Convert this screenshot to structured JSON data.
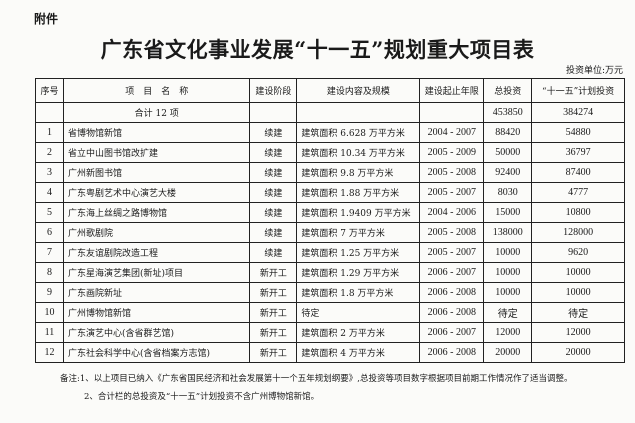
{
  "attachment_label": "附件",
  "title": "广东省文化事业发展“十一五”规划重大项目表",
  "unit": "投资单位:万元",
  "table": {
    "headers": [
      "序号",
      "项　目　名　称",
      "建设阶段",
      "建设内容及规模",
      "建设起止年限",
      "总投资",
      "“十一五”计划投资"
    ],
    "total_row": {
      "label": "合计 12 项",
      "total": "453850",
      "plan": "384274"
    },
    "rows": [
      [
        "1",
        "省博物馆新馆",
        "续建",
        "建筑面积 6.628 万平方米",
        "2004 - 2007",
        "88420",
        "54880"
      ],
      [
        "2",
        "省立中山图书馆改扩建",
        "续建",
        "建筑面积 10.34 万平方米",
        "2005 - 2009",
        "50000",
        "36797"
      ],
      [
        "3",
        "广州新图书馆",
        "续建",
        "建筑面积 9.8 万平方米",
        "2005 - 2008",
        "92400",
        "87400"
      ],
      [
        "4",
        "广东粤剧艺术中心演艺大楼",
        "续建",
        "建筑面积 1.88 万平方米",
        "2005 - 2007",
        "8030",
        "4777"
      ],
      [
        "5",
        "广东海上丝绸之路博物馆",
        "续建",
        "建筑面积 1.9409 万平方米",
        "2004 - 2006",
        "15000",
        "10800"
      ],
      [
        "6",
        "广州歌剧院",
        "续建",
        "建筑面积 7 万平方米",
        "2005 - 2008",
        "138000",
        "128000"
      ],
      [
        "7",
        "广东友谊剧院改造工程",
        "续建",
        "建筑面积 1.25 万平方米",
        "2005 - 2007",
        "10000",
        "9620"
      ],
      [
        "8",
        "广东星海演艺集团(新址)项目",
        "新开工",
        "建筑面积 1.29 万平方米",
        "2006 - 2007",
        "10000",
        "10000"
      ],
      [
        "9",
        "广东画院新址",
        "新开工",
        "建筑面积 1.8 万平方米",
        "2006 - 2008",
        "10000",
        "10000"
      ],
      [
        "10",
        "广州博物馆新馆",
        "新开工",
        "待定",
        "2006 - 2008",
        "待定",
        "待定"
      ],
      [
        "11",
        "广东演艺中心(含省群艺馆)",
        "新开工",
        "建筑面积 2 万平方米",
        "2006 - 2007",
        "12000",
        "12000"
      ],
      [
        "12",
        "广东社会科学中心(含省档案方志馆)",
        "新开工",
        "建筑面积 4 万平方米",
        "2006 - 2008",
        "20000",
        "20000"
      ]
    ]
  },
  "notes": [
    "备注:1、以上项目已纳入《广东省国民经济和社会发展第十一个五年规划纲要》,总投资等项目数字根据项目前期工作情况作了适当调整。",
    "2、合计栏的总投资及“十一五”计划投资不含广州博物馆新馆。"
  ]
}
